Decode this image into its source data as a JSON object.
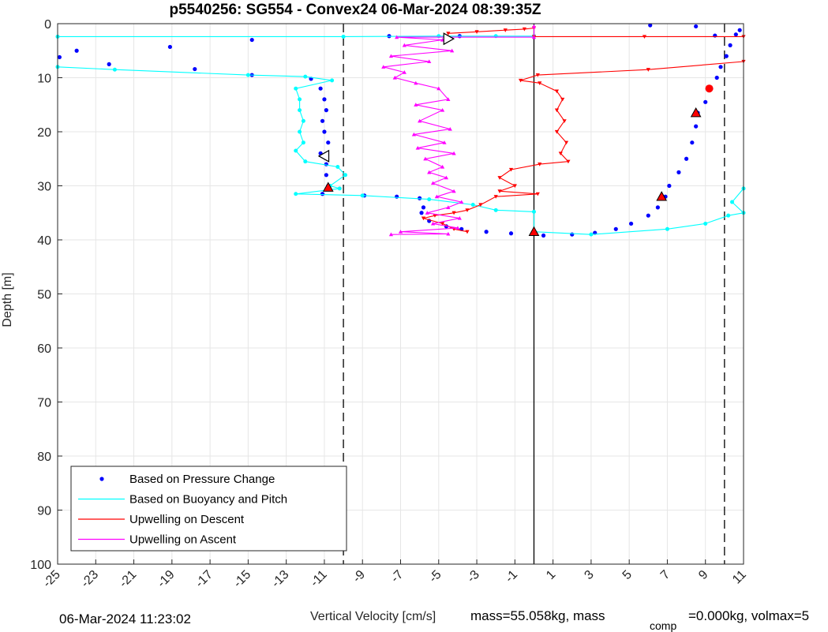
{
  "chart_data": {
    "type": "line",
    "title": "p5540256: SG554 - Convex24 06-Mar-2024 08:39:35Z",
    "xlabel": "Vertical Velocity [cm/s]",
    "ylabel": "Depth [m]",
    "xlim": [
      -25,
      11
    ],
    "ylim": [
      0,
      100
    ],
    "y_reversed": true,
    "grid": true,
    "x_ticks": [
      "-25",
      "-23",
      "-21",
      "-19",
      "-17",
      "-15",
      "-13",
      "-11",
      "-9",
      "-7",
      "-5",
      "-3",
      "-1",
      "1",
      "3",
      "5",
      "7",
      "9",
      "11"
    ],
    "y_ticks": [
      "0",
      "10",
      "20",
      "30",
      "40",
      "50",
      "60",
      "70",
      "80",
      "90",
      "100"
    ],
    "vertical_lines": [
      {
        "x": -10,
        "style": "dashed"
      },
      {
        "x": 0,
        "style": "solid"
      },
      {
        "x": 10,
        "style": "dashed"
      }
    ],
    "legend_position": "bottom-left",
    "series": [
      {
        "name": "Based on Pressure Change",
        "color": "#0000ff",
        "marker": "dot",
        "points": [
          [
            -24.9,
            6.2
          ],
          [
            -24,
            5
          ],
          [
            -22.3,
            7.5
          ],
          [
            -19.1,
            4.3
          ],
          [
            -17.8,
            8.4
          ],
          [
            -14.8,
            3
          ],
          [
            -14.8,
            9.5
          ],
          [
            -11.7,
            10.2
          ],
          [
            -11.2,
            12
          ],
          [
            -11,
            14
          ],
          [
            -10.9,
            16
          ],
          [
            -11.1,
            18
          ],
          [
            -11,
            20
          ],
          [
            -10.8,
            22
          ],
          [
            -11.2,
            24
          ],
          [
            -10.9,
            26
          ],
          [
            -10.9,
            28
          ],
          [
            -10.8,
            30
          ],
          [
            -11.1,
            31.5
          ],
          [
            -8.9,
            31.8
          ],
          [
            -7.2,
            32
          ],
          [
            -6,
            32.3
          ],
          [
            -5.8,
            34
          ],
          [
            -5.9,
            35
          ],
          [
            -5.5,
            36.5
          ],
          [
            -4.6,
            37.5
          ],
          [
            -3.8,
            38
          ],
          [
            -2.5,
            38.5
          ],
          [
            -1.2,
            38.8
          ],
          [
            0.5,
            39.2
          ],
          [
            2,
            39
          ],
          [
            3.2,
            38.7
          ],
          [
            4.3,
            38
          ],
          [
            5.1,
            37
          ],
          [
            6,
            35.5
          ],
          [
            6.5,
            34
          ],
          [
            6.9,
            32
          ],
          [
            7.1,
            30
          ],
          [
            7.6,
            27.5
          ],
          [
            8,
            25
          ],
          [
            8.3,
            22
          ],
          [
            8.5,
            19
          ],
          [
            8.6,
            16.5
          ],
          [
            9,
            14.5
          ],
          [
            9.3,
            12
          ],
          [
            9.6,
            10
          ],
          [
            9.8,
            8
          ],
          [
            10.1,
            6
          ],
          [
            10.3,
            4
          ],
          [
            10.6,
            2
          ],
          [
            10.8,
            1.2
          ],
          [
            9.5,
            2.2
          ],
          [
            8.5,
            0.5
          ],
          [
            6.1,
            0.3
          ],
          [
            -7.6,
            2.3
          ],
          [
            -3.9,
            2.3
          ]
        ]
      },
      {
        "name": "Based on Buoyancy and Pitch",
        "color": "#00ffff",
        "marker": "circle",
        "points": [
          [
            -25,
            2.4
          ],
          [
            -10,
            2.4
          ],
          [
            -5,
            2.3
          ],
          [
            -2,
            2.3
          ],
          [
            0,
            2.3
          ],
          [
            null,
            null
          ],
          [
            -25,
            8
          ],
          [
            -22,
            8.5
          ],
          [
            -15,
            9.5
          ],
          [
            -12,
            9.8
          ],
          [
            -10.6,
            10.5
          ],
          [
            -12.5,
            12
          ],
          [
            -12.3,
            14
          ],
          [
            -12.3,
            16
          ],
          [
            -12.1,
            18
          ],
          [
            -12.3,
            20
          ],
          [
            -12.1,
            22
          ],
          [
            -12.5,
            23.5
          ],
          [
            -12,
            25.5
          ],
          [
            -10.3,
            26.5
          ],
          [
            -9.9,
            28
          ],
          [
            -10.7,
            30
          ],
          [
            -10.2,
            30.5
          ],
          [
            -12.5,
            31.5
          ],
          [
            -9,
            31.8
          ],
          [
            -5.5,
            32.5
          ],
          [
            -3.2,
            33.5
          ],
          [
            -2,
            34.5
          ],
          [
            0,
            34.8
          ],
          [
            0,
            38.5
          ],
          [
            null,
            null
          ],
          [
            0,
            38.5
          ],
          [
            3,
            39
          ],
          [
            7,
            38
          ],
          [
            9,
            37
          ],
          [
            10.2,
            35.5
          ],
          [
            11,
            35
          ],
          [
            10.4,
            33
          ],
          [
            11,
            30.5
          ]
        ]
      },
      {
        "name": "Upwelling on Descent",
        "color": "#ff0000",
        "marker": "triangle-down",
        "points": [
          [
            0,
            2.4
          ],
          [
            5.8,
            2.4
          ],
          [
            11,
            2.4
          ],
          [
            null,
            null
          ],
          [
            -4.5,
            1.8
          ],
          [
            -3,
            1.5
          ],
          [
            -1.5,
            1.2
          ],
          [
            -0.5,
            1
          ],
          [
            0,
            0.8
          ],
          [
            null,
            null
          ],
          [
            11,
            7
          ],
          [
            6,
            8.5
          ],
          [
            0.2,
            9.5
          ],
          [
            -0.7,
            10.5
          ],
          [
            0.3,
            11
          ],
          [
            1.2,
            12.5
          ],
          [
            1.5,
            14
          ],
          [
            1.2,
            16
          ],
          [
            1.6,
            18
          ],
          [
            1.2,
            20
          ],
          [
            1.7,
            22
          ],
          [
            1.4,
            24
          ],
          [
            1.8,
            25.5
          ],
          [
            0.3,
            26
          ],
          [
            -1.2,
            27
          ],
          [
            -1.8,
            28.5
          ],
          [
            -1,
            30
          ],
          [
            -1.8,
            31
          ],
          [
            0.2,
            31.5
          ],
          [
            -2,
            32
          ],
          [
            -2.8,
            33.5
          ],
          [
            -3.5,
            34.5
          ],
          [
            -4.2,
            35
          ],
          [
            -5.2,
            35.5
          ],
          [
            -5.8,
            36
          ],
          [
            -4.8,
            37
          ],
          [
            -4.2,
            38
          ],
          [
            -3.5,
            38.5
          ]
        ]
      },
      {
        "name": "Upwelling on Ascent",
        "color": "#ff00ff",
        "marker": "triangle-up",
        "points": [
          [
            0,
            0.5
          ],
          [
            0,
            2.5
          ],
          [
            -7.2,
            2.5
          ],
          [
            -4.8,
            3
          ],
          [
            -6.8,
            4
          ],
          [
            -4.3,
            5
          ],
          [
            -7.5,
            6
          ],
          [
            -5.5,
            7
          ],
          [
            -7.9,
            8
          ],
          [
            -6.8,
            9
          ],
          [
            -7.3,
            10
          ],
          [
            -6.2,
            11
          ],
          [
            -5,
            12
          ],
          [
            -4.5,
            14
          ],
          [
            -6.2,
            15
          ],
          [
            -4.8,
            16
          ],
          [
            -6,
            18
          ],
          [
            -4.4,
            19.5
          ],
          [
            -6.3,
            20.5
          ],
          [
            -4.7,
            22
          ],
          [
            -6.1,
            23
          ],
          [
            -4.2,
            24
          ],
          [
            -5.7,
            25
          ],
          [
            -4.8,
            26.5
          ],
          [
            -5.5,
            27.5
          ],
          [
            -4.6,
            28.5
          ],
          [
            -5.3,
            29.5
          ],
          [
            -4.2,
            31
          ],
          [
            -5.1,
            32
          ],
          [
            -3.8,
            33
          ],
          [
            -4.5,
            34
          ],
          [
            -5.6,
            35
          ],
          [
            -3.9,
            36
          ],
          [
            -5.3,
            37
          ],
          [
            -4,
            37.8
          ],
          [
            -7,
            38.5
          ],
          [
            -4.5,
            38.9
          ],
          [
            -7.5,
            39
          ]
        ]
      }
    ],
    "highlight_markers": [
      {
        "x": -11,
        "y": 24.5,
        "shape": "triangle-left-open"
      },
      {
        "x": -4.5,
        "y": 2.8,
        "shape": "triangle-right-open"
      },
      {
        "x": -10.8,
        "y": 30.3,
        "shape": "triangle-red"
      },
      {
        "x": 0,
        "y": 38.5,
        "shape": "triangle-red"
      },
      {
        "x": 8.5,
        "y": 16.5,
        "shape": "triangle-red"
      },
      {
        "x": 6.7,
        "y": 32,
        "shape": "triangle-red"
      },
      {
        "x": 9.2,
        "y": 12,
        "shape": "dot-red"
      }
    ],
    "footer_left": "06-Mar-2024 11:23:02",
    "footer_right_1": "mass=55.058kg, mass",
    "footer_right_sub": "comp",
    "footer_right_2": "=0.000kg, volmax=5"
  }
}
